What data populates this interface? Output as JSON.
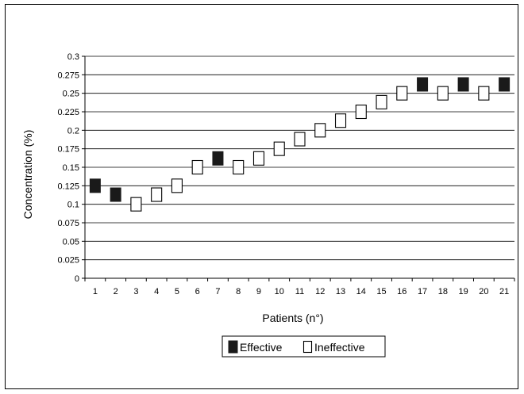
{
  "chart_data": {
    "type": "scatter",
    "xlabel": "Patients (n°)",
    "ylabel": "Concentration (%)",
    "ylim": [
      0,
      0.3
    ],
    "yticks": [
      "0",
      "0.025",
      "0.05",
      "0.075",
      "0.1",
      "0.125",
      "0.15",
      "0.175",
      "0.2",
      "0.225",
      "0.25",
      "0.275",
      "0.3"
    ],
    "categories": [
      "1",
      "2",
      "3",
      "4",
      "5",
      "6",
      "7",
      "8",
      "9",
      "10",
      "11",
      "12",
      "13",
      "14",
      "15",
      "16",
      "17",
      "18",
      "19",
      "20",
      "21"
    ],
    "grid": "horizontal",
    "legend_position": "bottom",
    "series": [
      {
        "name": "Effective",
        "marker": "filled-square",
        "color": "#1a1a1a",
        "points": [
          {
            "x": 1,
            "y": 0.125
          },
          {
            "x": 2,
            "y": 0.113
          },
          {
            "x": 7,
            "y": 0.162
          },
          {
            "x": 17,
            "y": 0.262
          },
          {
            "x": 19,
            "y": 0.262
          },
          {
            "x": 21,
            "y": 0.262
          }
        ]
      },
      {
        "name": "Ineffective",
        "marker": "hollow-square",
        "color": "#000000",
        "points": [
          {
            "x": 3,
            "y": 0.1
          },
          {
            "x": 4,
            "y": 0.113
          },
          {
            "x": 5,
            "y": 0.125
          },
          {
            "x": 6,
            "y": 0.15
          },
          {
            "x": 8,
            "y": 0.15
          },
          {
            "x": 9,
            "y": 0.162
          },
          {
            "x": 10,
            "y": 0.175
          },
          {
            "x": 11,
            "y": 0.188
          },
          {
            "x": 12,
            "y": 0.2
          },
          {
            "x": 13,
            "y": 0.213
          },
          {
            "x": 14,
            "y": 0.225
          },
          {
            "x": 15,
            "y": 0.238
          },
          {
            "x": 16,
            "y": 0.25
          },
          {
            "x": 18,
            "y": 0.25
          },
          {
            "x": 20,
            "y": 0.25
          }
        ]
      }
    ]
  }
}
